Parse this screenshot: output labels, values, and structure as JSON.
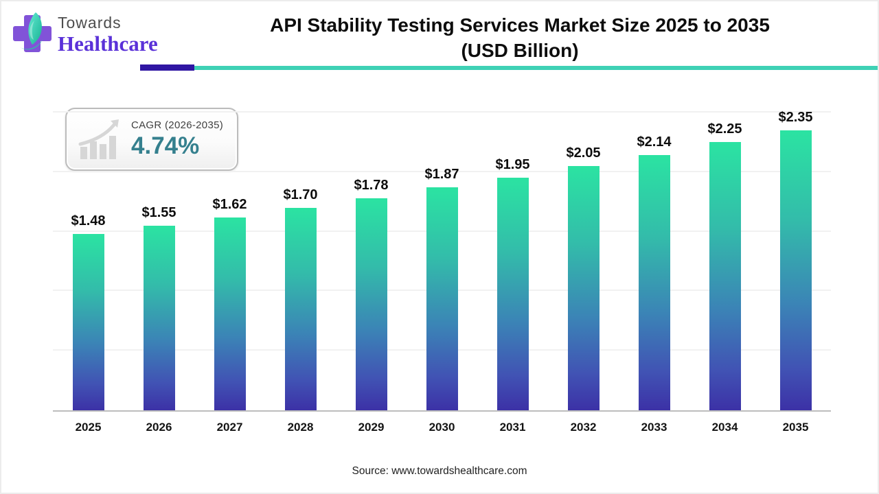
{
  "logo": {
    "top": "Towards",
    "bottom": "Healthcare"
  },
  "header": {
    "title_line1": "API Stability Testing Services Market Size 2025 to 2035",
    "title_line2": "(USD Billion)"
  },
  "cagr_badge": {
    "label": "CAGR (2026-2035)",
    "value": "4.74%"
  },
  "chart_data": {
    "type": "bar",
    "title": "API Stability Testing Services Market Size 2025 to 2035 (USD Billion)",
    "categories": [
      "2025",
      "2026",
      "2027",
      "2028",
      "2029",
      "2030",
      "2031",
      "2032",
      "2033",
      "2034",
      "2035"
    ],
    "values": [
      1.48,
      1.55,
      1.62,
      1.7,
      1.78,
      1.87,
      1.95,
      2.05,
      2.14,
      2.25,
      2.35
    ],
    "value_labels": [
      "$1.48",
      "$1.55",
      "$1.62",
      "$1.70",
      "$1.78",
      "$1.87",
      "$1.95",
      "$2.05",
      "$2.14",
      "$2.25",
      "$2.35"
    ],
    "xlabel": "",
    "ylabel": "",
    "ylim": [
      0,
      2.5
    ],
    "gridline_values": [
      0.5,
      1.0,
      1.5,
      2.0,
      2.5
    ],
    "grid": "horizontal-light",
    "legend_position": "none",
    "bar_gradient_top_to_bottom": [
      "#2be3a2",
      "#33bcaa",
      "#3b84b6",
      "#4153b4",
      "#3c31a6"
    ]
  },
  "colors": {
    "title_text": "#0d0d0d",
    "rule_purple": "#2f16a3",
    "rule_teal": "#3fd1b5",
    "cagr_value_teal": "#35808e",
    "logo_purple": "#5a31d8",
    "logo_cross_purple": "#8153d8",
    "logo_leaf_teal": "#2fd8b4",
    "axis_gray": "#bdbdbd",
    "gridline_gray": "#f1f1f1"
  },
  "footer": {
    "source_text": "Source: www.towardshealthcare.com"
  }
}
